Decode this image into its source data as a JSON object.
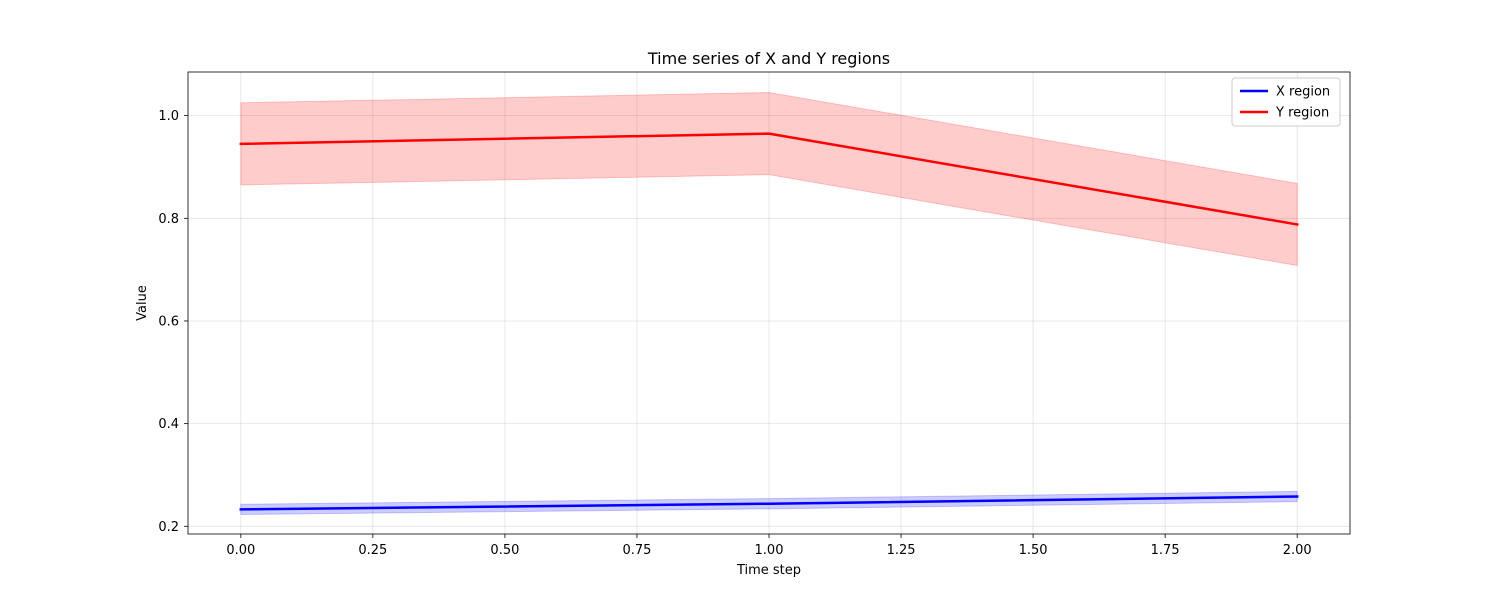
{
  "chart_data": {
    "type": "line",
    "title": "Time series of X and Y regions",
    "xlabel": "Time step",
    "ylabel": "Value",
    "x": [
      0,
      1,
      2
    ],
    "xlim": [
      -0.1,
      2.1
    ],
    "ylim": [
      0.185,
      1.085
    ],
    "xticks": [
      0,
      0.25,
      0.5,
      0.75,
      1,
      1.25,
      1.5,
      1.75,
      2
    ],
    "xtick_labels": [
      "0.00",
      "0.25",
      "0.50",
      "0.75",
      "1.00",
      "1.25",
      "1.50",
      "1.75",
      "2.00"
    ],
    "yticks": [
      0.2,
      0.4,
      0.6,
      0.8,
      1.0
    ],
    "ytick_labels": [
      "0.2",
      "0.4",
      "0.6",
      "0.8",
      "1.0"
    ],
    "grid": true,
    "legend_position": "top-right",
    "series": [
      {
        "name": "X region",
        "color": "#0000ff",
        "values": [
          0.233,
          0.244,
          0.258
        ],
        "lower": [
          0.223,
          0.234,
          0.248
        ],
        "upper": [
          0.243,
          0.254,
          0.268
        ]
      },
      {
        "name": "Y region",
        "color": "#ff0000",
        "values": [
          0.945,
          0.965,
          0.788
        ],
        "lower": [
          0.865,
          0.885,
          0.708
        ],
        "upper": [
          1.025,
          1.045,
          0.868
        ]
      }
    ]
  }
}
